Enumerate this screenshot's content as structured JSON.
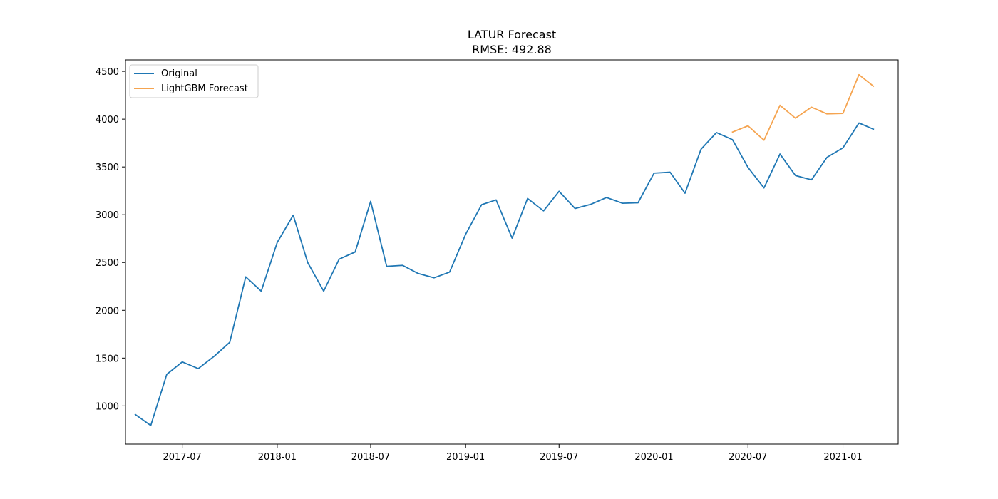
{
  "chart_data": {
    "type": "line",
    "title": "LATUR Forecast",
    "subtitle": "RMSE: 492.88",
    "xlabel": "",
    "ylabel": "",
    "x_ticks": [
      "2017-07",
      "2018-01",
      "2018-07",
      "2019-01",
      "2019-07",
      "2020-01",
      "2020-07",
      "2021-01"
    ],
    "y_ticks": [
      1000,
      1500,
      2000,
      2500,
      3000,
      3500,
      4000,
      4500
    ],
    "xlim": [
      "2017-03-13",
      "2021-04-18"
    ],
    "ylim": [
      600,
      4620
    ],
    "grid": false,
    "legend_position": "top-left",
    "series": [
      {
        "name": "Original",
        "color": "#1f77b4",
        "x": [
          "2017-04",
          "2017-05",
          "2017-06",
          "2017-07",
          "2017-08",
          "2017-09",
          "2017-10",
          "2017-11",
          "2017-12",
          "2018-01",
          "2018-02",
          "2018-03",
          "2018-04",
          "2018-05",
          "2018-06",
          "2018-07",
          "2018-08",
          "2018-09",
          "2018-10",
          "2018-11",
          "2018-12",
          "2019-01",
          "2019-02",
          "2019-03",
          "2019-04",
          "2019-05",
          "2019-06",
          "2019-07",
          "2019-08",
          "2019-09",
          "2019-10",
          "2019-11",
          "2019-12",
          "2020-01",
          "2020-02",
          "2020-03",
          "2020-04",
          "2020-05",
          "2020-06",
          "2020-07",
          "2020-08",
          "2020-09",
          "2020-10",
          "2020-11",
          "2020-12",
          "2021-01",
          "2021-02",
          "2021-03"
        ],
        "values": [
          910,
          795,
          1330,
          1460,
          1390,
          1520,
          1665,
          2350,
          2200,
          2710,
          2995,
          2500,
          2200,
          2535,
          2610,
          3140,
          2460,
          2470,
          2385,
          2340,
          2400,
          2795,
          3105,
          3155,
          2755,
          3170,
          3040,
          3245,
          3065,
          3110,
          3180,
          3120,
          3125,
          3435,
          3445,
          3225,
          3685,
          3860,
          3785,
          3495,
          3280,
          3635,
          3410,
          3365,
          3600,
          3700,
          3960,
          3895
        ]
      },
      {
        "name": "LightGBM Forecast",
        "color": "#f5a450",
        "x": [
          "2020-06",
          "2020-07",
          "2020-08",
          "2020-09",
          "2020-10",
          "2020-11",
          "2020-12",
          "2021-01",
          "2021-02",
          "2021-03"
        ],
        "values": [
          3865,
          3930,
          3780,
          4145,
          4010,
          4125,
          4055,
          4060,
          4465,
          4345
        ]
      }
    ]
  }
}
